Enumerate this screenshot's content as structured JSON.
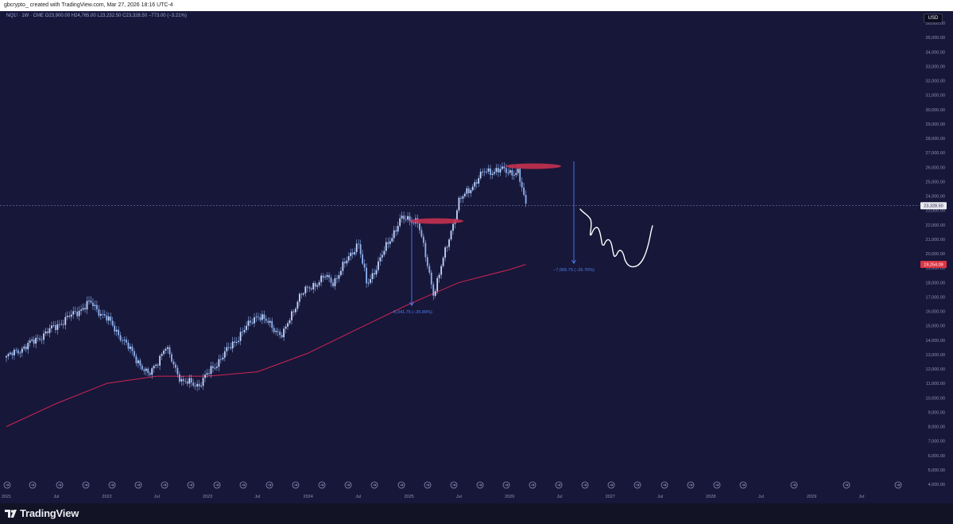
{
  "header": {
    "caption": "gbcrypto_ created with TradingView.com, Mar 27, 2026 18:16 UTC-4"
  },
  "chart": {
    "symbol_line": "NQ1! · 1W · CME   O23,900.00  H24,765.00  L23,232.50  C23,328.50  −773.00 (−3.21%)",
    "currency": "USD",
    "last_price_label": "23,328.50",
    "ma_price_label": "19,254.09",
    "measure_1_label": "−6,041.75 (−26.89%)",
    "measure_2_label": "−7,066.75 (−26.76%)",
    "colors": {
      "background": "#171739",
      "candle": "#8eb3f2",
      "moving_average": "#cf2553",
      "measure": "#4f7df0",
      "highlight": "#c4304f",
      "projection": "#ffffff",
      "price_line": "#6d7bb0",
      "ma_badge": "#dc3545"
    },
    "event_icon": "arrow-circle-icon"
  },
  "chart_data": {
    "type": "candlestick",
    "title": "",
    "xlabel": "",
    "ylabel": "",
    "ylim": [
      4000,
      36500
    ],
    "grid": false,
    "y_ticks": [
      "36,000.00",
      "35,000.00",
      "34,000.00",
      "33,000.00",
      "32,000.00",
      "31,000.00",
      "30,000.00",
      "29,000.00",
      "28,000.00",
      "27,000.00",
      "26,000.00",
      "25,000.00",
      "24,000.00",
      "23,000.00",
      "22,000.00",
      "21,000.00",
      "20,000.00",
      "19,000.00",
      "18,000.00",
      "17,000.00",
      "16,000.00",
      "15,000.00",
      "14,000.00",
      "13,000.00",
      "12,000.00",
      "11,000.00",
      "10,000.00",
      "9,000.00",
      "8,000.00",
      "7,000.00",
      "6,000.00",
      "5,000.00",
      "4,000.00"
    ],
    "x_ticks": [
      "2021",
      "Jul",
      "2022",
      "Jul",
      "2023",
      "Jul",
      "2024",
      "Jul",
      "2025",
      "Jul",
      "2026",
      "Jul",
      "2027",
      "Jul",
      "2028",
      "Jul",
      "2029",
      "Jul"
    ],
    "series": [
      {
        "name": "NQ1! weekly close",
        "x": [
          "2021-01",
          "2021-04",
          "2021-07",
          "2021-11",
          "2022-01",
          "2022-03",
          "2022-06",
          "2022-08",
          "2022-10",
          "2022-12",
          "2023-03",
          "2023-07",
          "2023-10",
          "2023-12",
          "2024-03",
          "2024-04",
          "2024-07",
          "2024-08",
          "2024-12",
          "2025-02",
          "2025-04",
          "2025-07",
          "2025-10",
          "2025-12",
          "2026-02",
          "2026-03"
        ],
        "values": [
          12800,
          13800,
          15000,
          16600,
          15500,
          14000,
          11500,
          13500,
          11100,
          10900,
          13000,
          15800,
          14300,
          17100,
          18400,
          18000,
          20800,
          17800,
          22400,
          22300,
          17200,
          23600,
          25700,
          25800,
          25600,
          23328.5
        ]
      },
      {
        "name": "moving average",
        "x": [
          "2021-01",
          "2021-07",
          "2022-01",
          "2022-07",
          "2023-01",
          "2023-07",
          "2024-01",
          "2024-07",
          "2025-01",
          "2025-07",
          "2026-01",
          "2026-03"
        ],
        "values": [
          8000,
          9600,
          11000,
          11500,
          11500,
          11800,
          13100,
          14800,
          16500,
          18000,
          18900,
          19254.09
        ]
      }
    ],
    "annotations": [
      {
        "type": "measure",
        "from": 22450,
        "to": 16408,
        "label": "−6,041.75 (−26.89%)"
      },
      {
        "type": "measure",
        "from": 26400,
        "to": 19333,
        "label": "−7,066.75 (−26.76%)"
      },
      {
        "type": "highlight",
        "at": "2025 top",
        "value": 22400
      },
      {
        "type": "highlight",
        "at": "2026 top",
        "value": 26300
      },
      {
        "type": "projection",
        "shape": "hand-drawn path",
        "values": [
          23000,
          22000,
          20800,
          19800,
          19400,
          22000
        ]
      }
    ]
  }
}
